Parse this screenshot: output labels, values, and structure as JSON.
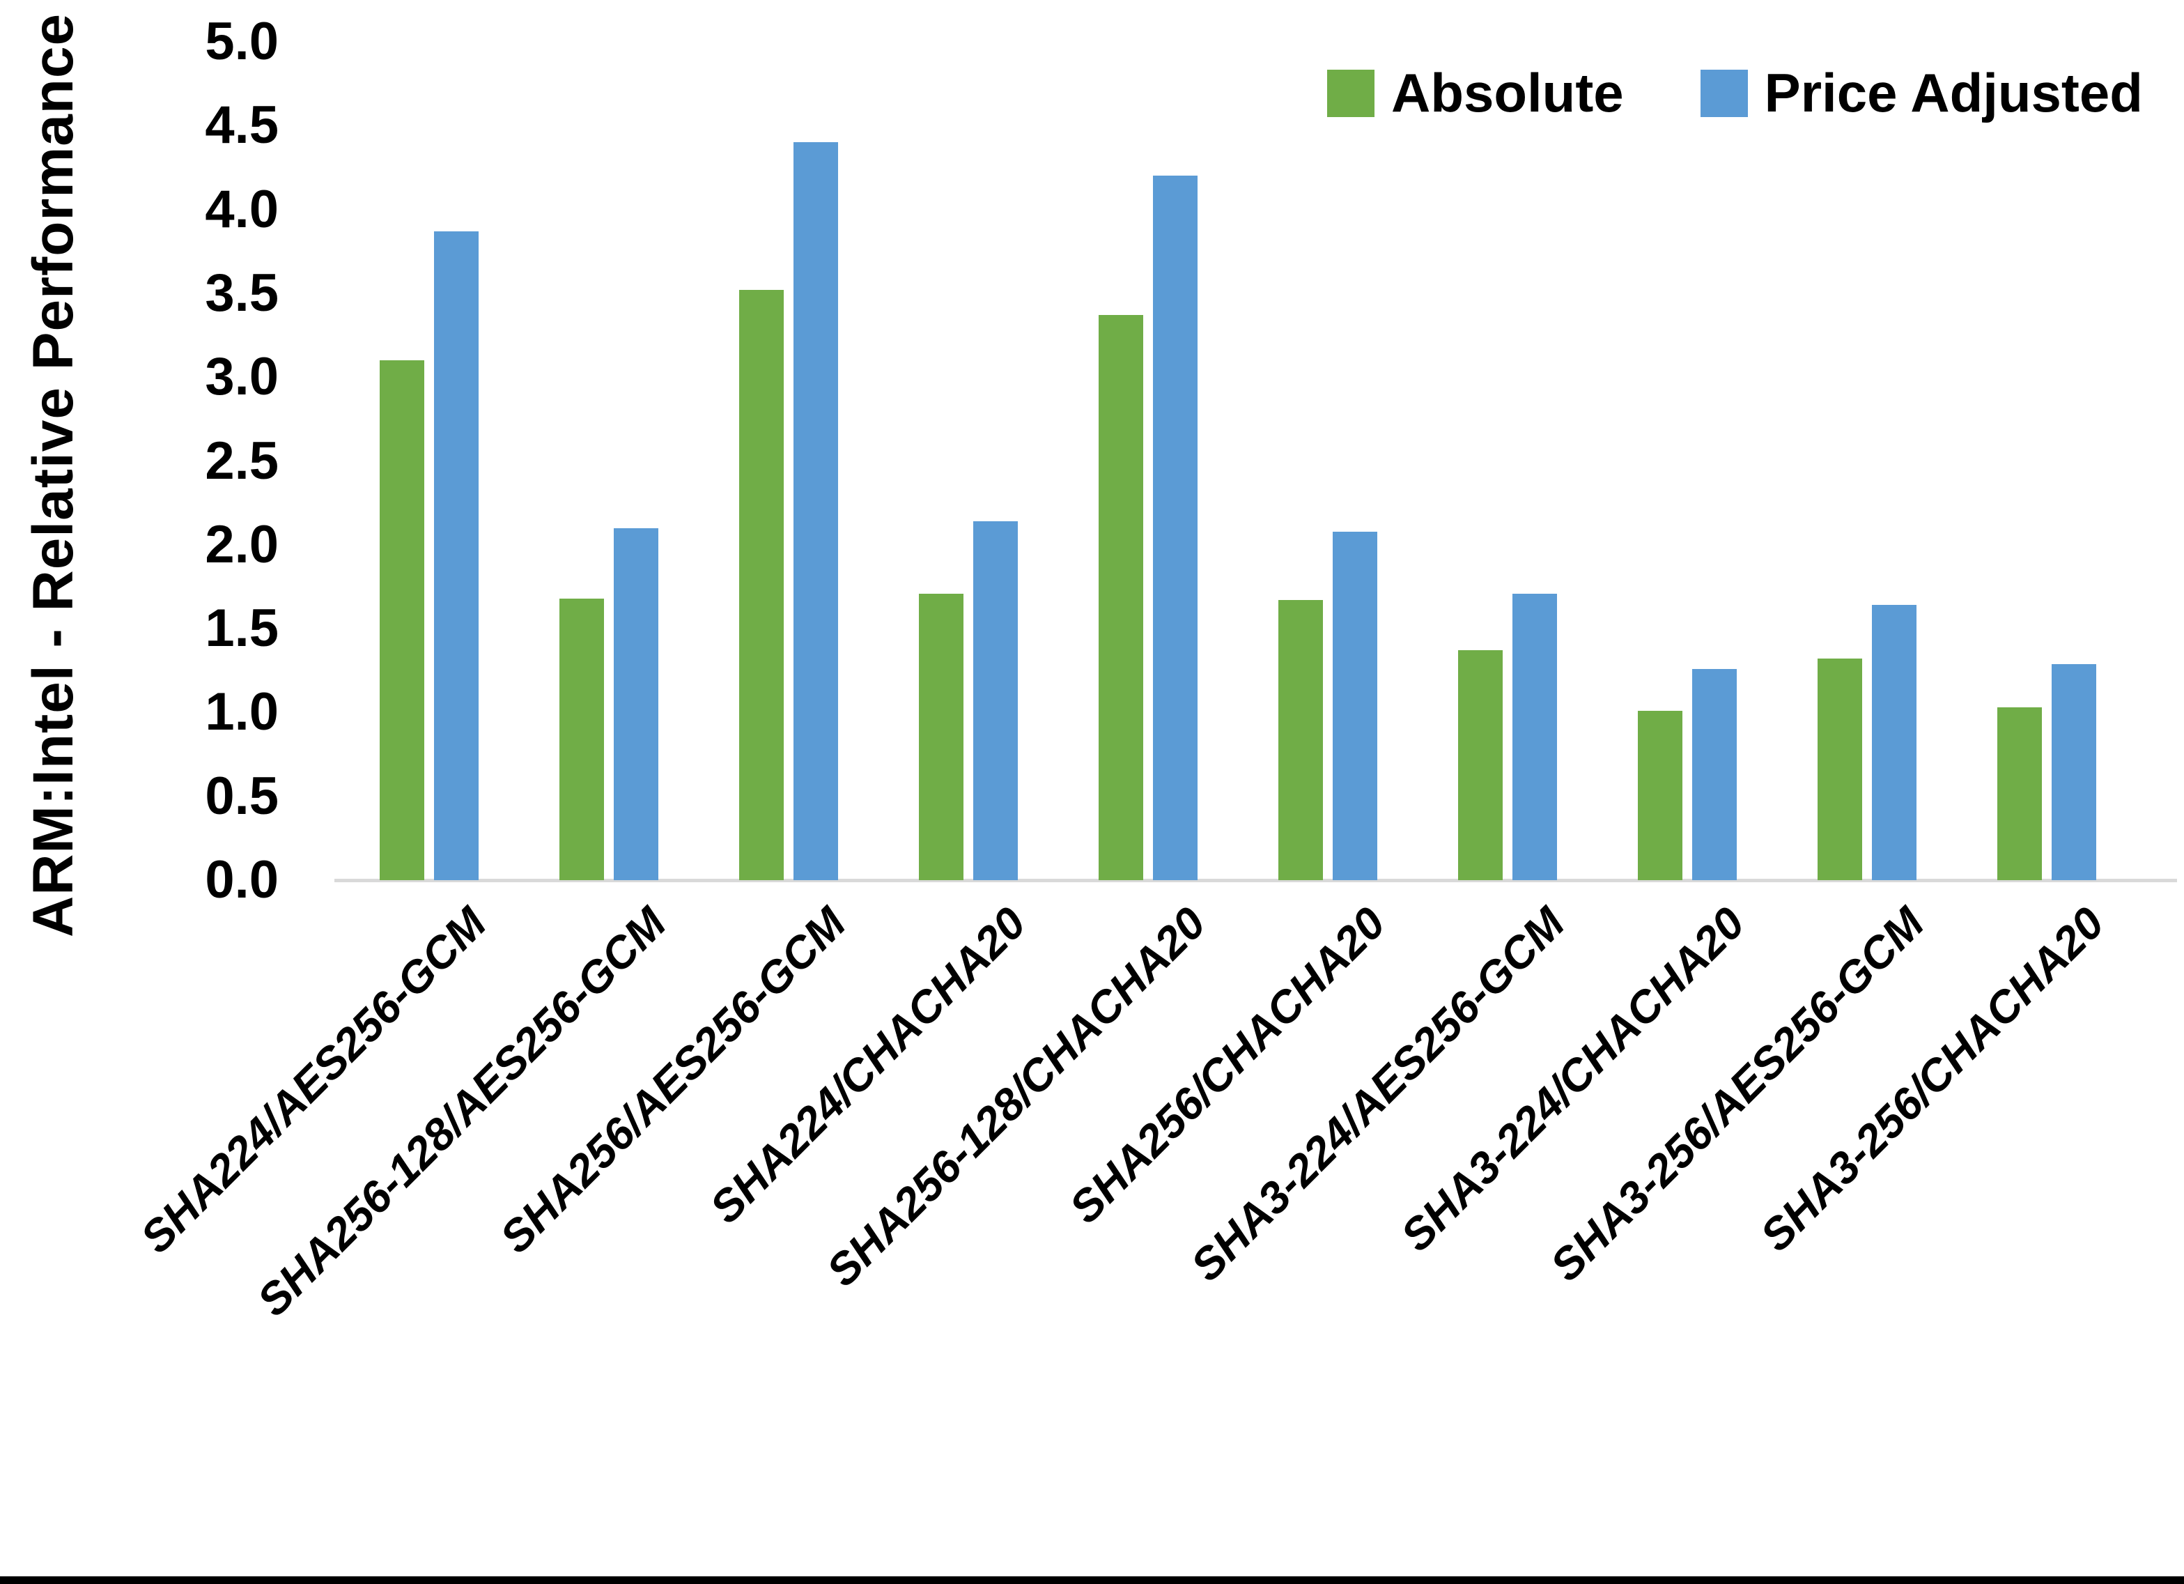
{
  "chart_data": {
    "type": "bar",
    "title": "",
    "xlabel": "",
    "ylabel": "ARM:Intel - Relative Performance",
    "ylim": [
      0,
      5
    ],
    "ytick_step": 0.5,
    "ytick_format_decimals": 1,
    "grid": false,
    "legend_position": "top-right",
    "categories": [
      "SHA224/AES256-GCM",
      "SHA256-128/AES256-GCM",
      "SHA256/AES256-GCM",
      "SHA224/CHACHA20",
      "SHA256-128/CHACHA20",
      "SHA256/CHACHA20",
      "SHA3-224/AES256-GCM",
      "SHA3-224/CHACHA20",
      "SHA3-256/AES256-GCM",
      "SHA3-256/CHACHA20"
    ],
    "series": [
      {
        "name": "Absolute",
        "color": "#70AD47",
        "values": [
          3.1,
          1.68,
          3.52,
          1.71,
          3.37,
          1.67,
          1.37,
          1.01,
          1.32,
          1.03
        ]
      },
      {
        "name": "Price Adjusted",
        "color": "#5B9BD5",
        "values": [
          3.87,
          2.1,
          4.4,
          2.14,
          4.2,
          2.08,
          1.71,
          1.26,
          1.64,
          1.29
        ]
      }
    ],
    "axis_line_color": "#D9D9D9",
    "text_color": "#000000",
    "background_color": "#FFFFFF"
  }
}
